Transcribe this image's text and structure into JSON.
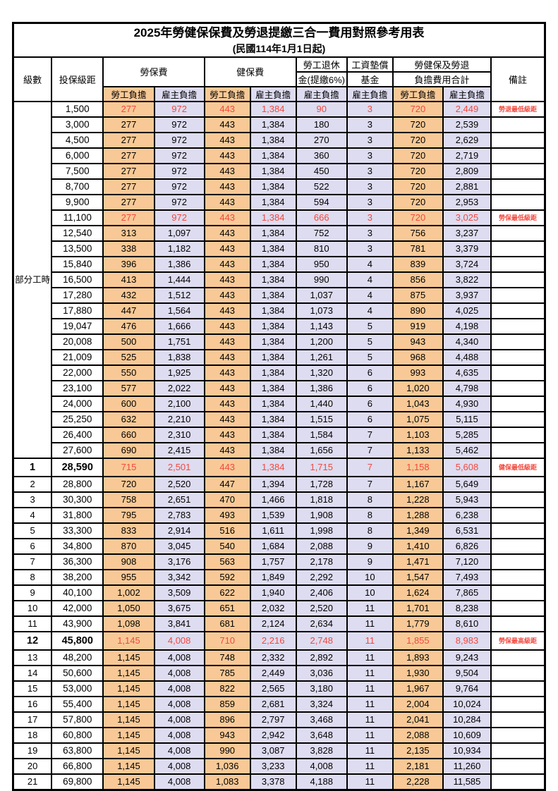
{
  "title": {
    "line1": "2025年勞健保保費及勞退提繳三合一費用對照參考用表",
    "line2": "(民國114年1月1日起)"
  },
  "colors": {
    "employee_column_bg": "#F8C996",
    "employer_column_bg": "#DEDCF0",
    "highlight_text": "#F2493F",
    "border": "#000000"
  },
  "header": {
    "level": "級數",
    "bracket": "投保級距",
    "labor_fee": "勞保費",
    "health_fee": "健保費",
    "pension_line1": "勞工退休",
    "pension_line2": "金(提繳6%)",
    "wage_fund_line1": "工資墊償",
    "wage_fund_line2": "基金",
    "total_line1": "勞健保及勞退",
    "total_line2": "負擔費用合計",
    "remark": "備註",
    "burden": [
      {
        "label": "勞工負擔",
        "type": "emp"
      },
      {
        "label": "雇主負擔",
        "type": "er"
      },
      {
        "label": "勞工負擔",
        "type": "emp"
      },
      {
        "label": "雇主負擔",
        "type": "er"
      },
      {
        "label": "雇主負擔",
        "type": "er"
      },
      {
        "label": "雇主負擔",
        "type": "er"
      },
      {
        "label": "勞工負擔",
        "type": "emp"
      },
      {
        "label": "雇主負擔",
        "type": "er"
      }
    ]
  },
  "group_label": "部分工時",
  "group_rowspan": 23,
  "rows": [
    {
      "level": "",
      "bracket": "1,500",
      "v": [
        "277",
        "972",
        "443",
        "1,384",
        "90",
        "3",
        "720",
        "2,449"
      ],
      "remark": "勞退最低級距",
      "red": true
    },
    {
      "level": "",
      "bracket": "3,000",
      "v": [
        "277",
        "972",
        "443",
        "1,384",
        "180",
        "3",
        "720",
        "2,539"
      ]
    },
    {
      "level": "",
      "bracket": "4,500",
      "v": [
        "277",
        "972",
        "443",
        "1,384",
        "270",
        "3",
        "720",
        "2,629"
      ]
    },
    {
      "level": "",
      "bracket": "6,000",
      "v": [
        "277",
        "972",
        "443",
        "1,384",
        "360",
        "3",
        "720",
        "2,719"
      ]
    },
    {
      "level": "",
      "bracket": "7,500",
      "v": [
        "277",
        "972",
        "443",
        "1,384",
        "450",
        "3",
        "720",
        "2,809"
      ]
    },
    {
      "level": "",
      "bracket": "8,700",
      "v": [
        "277",
        "972",
        "443",
        "1,384",
        "522",
        "3",
        "720",
        "2,881"
      ]
    },
    {
      "level": "",
      "bracket": "9,900",
      "v": [
        "277",
        "972",
        "443",
        "1,384",
        "594",
        "3",
        "720",
        "2,953"
      ]
    },
    {
      "level": "",
      "bracket": "11,100",
      "v": [
        "277",
        "972",
        "443",
        "1,384",
        "666",
        "3",
        "720",
        "3,025"
      ],
      "remark": "勞保最低級距",
      "red": true
    },
    {
      "level": "",
      "bracket": "12,540",
      "v": [
        "313",
        "1,097",
        "443",
        "1,384",
        "752",
        "3",
        "756",
        "3,237"
      ]
    },
    {
      "level": "",
      "bracket": "13,500",
      "v": [
        "338",
        "1,182",
        "443",
        "1,384",
        "810",
        "3",
        "781",
        "3,379"
      ]
    },
    {
      "level": "",
      "bracket": "15,840",
      "v": [
        "396",
        "1,386",
        "443",
        "1,384",
        "950",
        "4",
        "839",
        "3,724"
      ]
    },
    {
      "level": "",
      "bracket": "16,500",
      "v": [
        "413",
        "1,444",
        "443",
        "1,384",
        "990",
        "4",
        "856",
        "3,822"
      ]
    },
    {
      "level": "",
      "bracket": "17,280",
      "v": [
        "432",
        "1,512",
        "443",
        "1,384",
        "1,037",
        "4",
        "875",
        "3,937"
      ]
    },
    {
      "level": "",
      "bracket": "17,880",
      "v": [
        "447",
        "1,564",
        "443",
        "1,384",
        "1,073",
        "4",
        "890",
        "4,025"
      ]
    },
    {
      "level": "",
      "bracket": "19,047",
      "v": [
        "476",
        "1,666",
        "443",
        "1,384",
        "1,143",
        "5",
        "919",
        "4,198"
      ]
    },
    {
      "level": "",
      "bracket": "20,008",
      "v": [
        "500",
        "1,751",
        "443",
        "1,384",
        "1,200",
        "5",
        "943",
        "4,340"
      ]
    },
    {
      "level": "",
      "bracket": "21,009",
      "v": [
        "525",
        "1,838",
        "443",
        "1,384",
        "1,261",
        "5",
        "968",
        "4,488"
      ]
    },
    {
      "level": "",
      "bracket": "22,000",
      "v": [
        "550",
        "1,925",
        "443",
        "1,384",
        "1,320",
        "6",
        "993",
        "4,635"
      ]
    },
    {
      "level": "",
      "bracket": "23,100",
      "v": [
        "577",
        "2,022",
        "443",
        "1,384",
        "1,386",
        "6",
        "1,020",
        "4,798"
      ]
    },
    {
      "level": "",
      "bracket": "24,000",
      "v": [
        "600",
        "2,100",
        "443",
        "1,384",
        "1,440",
        "6",
        "1,043",
        "4,930"
      ]
    },
    {
      "level": "",
      "bracket": "25,250",
      "v": [
        "632",
        "2,210",
        "443",
        "1,384",
        "1,515",
        "6",
        "1,075",
        "5,115"
      ]
    },
    {
      "level": "",
      "bracket": "26,400",
      "v": [
        "660",
        "2,310",
        "443",
        "1,384",
        "1,584",
        "7",
        "1,103",
        "5,285"
      ]
    },
    {
      "level": "",
      "bracket": "27,600",
      "v": [
        "690",
        "2,415",
        "443",
        "1,384",
        "1,656",
        "7",
        "1,133",
        "5,462"
      ]
    },
    {
      "level": "1",
      "bracket": "28,590",
      "v": [
        "715",
        "2,501",
        "443",
        "1,384",
        "1,715",
        "7",
        "1,158",
        "5,608"
      ],
      "remark": "健保最低級距",
      "red": true,
      "bold": true
    },
    {
      "level": "2",
      "bracket": "28,800",
      "v": [
        "720",
        "2,520",
        "447",
        "1,394",
        "1,728",
        "7",
        "1,167",
        "5,649"
      ]
    },
    {
      "level": "3",
      "bracket": "30,300",
      "v": [
        "758",
        "2,651",
        "470",
        "1,466",
        "1,818",
        "8",
        "1,228",
        "5,943"
      ]
    },
    {
      "level": "4",
      "bracket": "31,800",
      "v": [
        "795",
        "2,783",
        "493",
        "1,539",
        "1,908",
        "8",
        "1,288",
        "6,238"
      ]
    },
    {
      "level": "5",
      "bracket": "33,300",
      "v": [
        "833",
        "2,914",
        "516",
        "1,611",
        "1,998",
        "8",
        "1,349",
        "6,531"
      ]
    },
    {
      "level": "6",
      "bracket": "34,800",
      "v": [
        "870",
        "3,045",
        "540",
        "1,684",
        "2,088",
        "9",
        "1,410",
        "6,826"
      ]
    },
    {
      "level": "7",
      "bracket": "36,300",
      "v": [
        "908",
        "3,176",
        "563",
        "1,757",
        "2,178",
        "9",
        "1,471",
        "7,120"
      ]
    },
    {
      "level": "8",
      "bracket": "38,200",
      "v": [
        "955",
        "3,342",
        "592",
        "1,849",
        "2,292",
        "10",
        "1,547",
        "7,493"
      ]
    },
    {
      "level": "9",
      "bracket": "40,100",
      "v": [
        "1,002",
        "3,509",
        "622",
        "1,940",
        "2,406",
        "10",
        "1,624",
        "7,865"
      ]
    },
    {
      "level": "10",
      "bracket": "42,000",
      "v": [
        "1,050",
        "3,675",
        "651",
        "2,032",
        "2,520",
        "11",
        "1,701",
        "8,238"
      ]
    },
    {
      "level": "11",
      "bracket": "43,900",
      "v": [
        "1,098",
        "3,841",
        "681",
        "2,124",
        "2,634",
        "11",
        "1,779",
        "8,610"
      ]
    },
    {
      "level": "12",
      "bracket": "45,800",
      "v": [
        "1,145",
        "4,008",
        "710",
        "2,216",
        "2,748",
        "11",
        "1,855",
        "8,983"
      ],
      "remark": "勞保最高級距",
      "red": true,
      "bold": true
    },
    {
      "level": "13",
      "bracket": "48,200",
      "v": [
        "1,145",
        "4,008",
        "748",
        "2,332",
        "2,892",
        "11",
        "1,893",
        "9,243"
      ]
    },
    {
      "level": "14",
      "bracket": "50,600",
      "v": [
        "1,145",
        "4,008",
        "785",
        "2,449",
        "3,036",
        "11",
        "1,930",
        "9,504"
      ]
    },
    {
      "level": "15",
      "bracket": "53,000",
      "v": [
        "1,145",
        "4,008",
        "822",
        "2,565",
        "3,180",
        "11",
        "1,967",
        "9,764"
      ]
    },
    {
      "level": "16",
      "bracket": "55,400",
      "v": [
        "1,145",
        "4,008",
        "859",
        "2,681",
        "3,324",
        "11",
        "2,004",
        "10,024"
      ]
    },
    {
      "level": "17",
      "bracket": "57,800",
      "v": [
        "1,145",
        "4,008",
        "896",
        "2,797",
        "3,468",
        "11",
        "2,041",
        "10,284"
      ]
    },
    {
      "level": "18",
      "bracket": "60,800",
      "v": [
        "1,145",
        "4,008",
        "943",
        "2,942",
        "3,648",
        "11",
        "2,088",
        "10,609"
      ]
    },
    {
      "level": "19",
      "bracket": "63,800",
      "v": [
        "1,145",
        "4,008",
        "990",
        "3,087",
        "3,828",
        "11",
        "2,135",
        "10,934"
      ]
    },
    {
      "level": "20",
      "bracket": "66,800",
      "v": [
        "1,145",
        "4,008",
        "1,036",
        "3,233",
        "4,008",
        "11",
        "2,181",
        "11,260"
      ]
    },
    {
      "level": "21",
      "bracket": "69,800",
      "v": [
        "1,145",
        "4,008",
        "1,083",
        "3,378",
        "4,188",
        "11",
        "2,228",
        "11,585"
      ]
    }
  ]
}
